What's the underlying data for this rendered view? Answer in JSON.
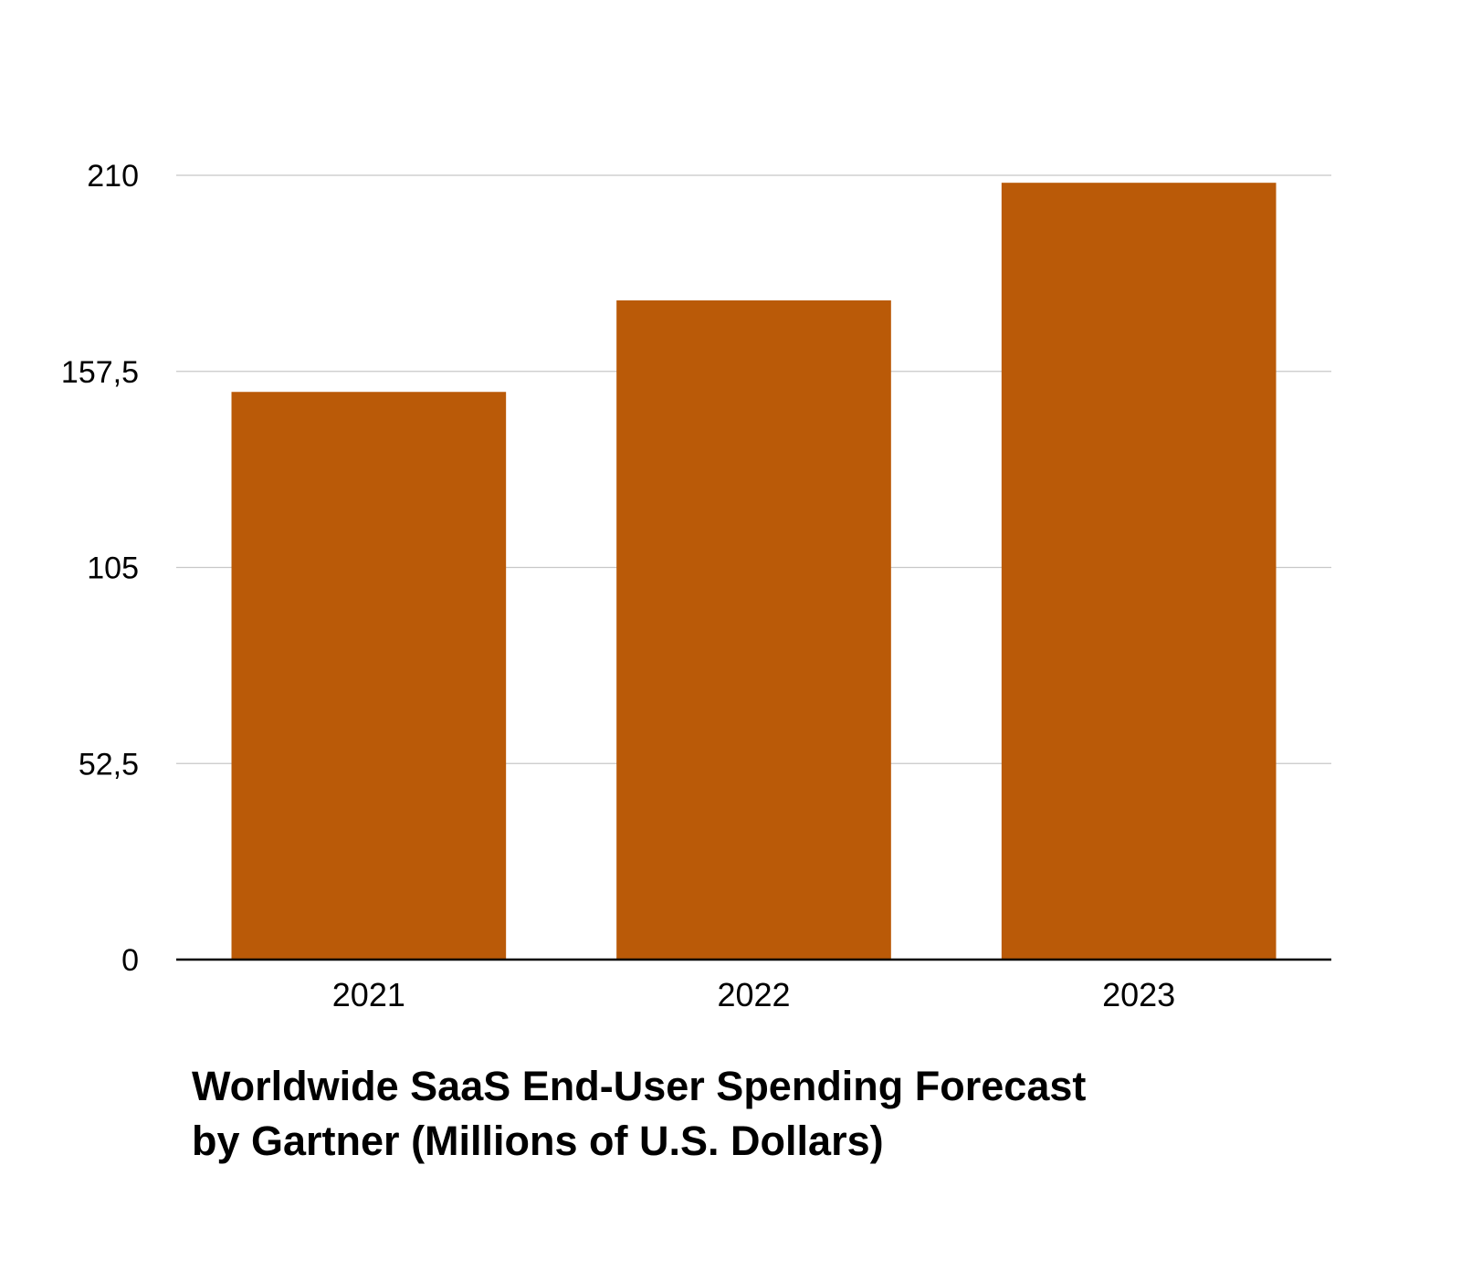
{
  "chart_data": {
    "type": "bar",
    "title_lines": [
      "Worldwide SaaS End-User Spending Forecast",
      "by Gartner (Millions of U.S. Dollars)"
    ],
    "categories": [
      "2021",
      "2022",
      "2023"
    ],
    "values": [
      152,
      176.5,
      208
    ],
    "ylim": [
      0,
      210
    ],
    "yticks": [
      0,
      52.5,
      105,
      157.5,
      210
    ],
    "ytick_labels": [
      "0",
      "52,5",
      "105",
      "157,5",
      "210"
    ],
    "xlabel": "",
    "ylabel": "",
    "grid": true,
    "legend": "none",
    "bar_color": "#BA5A08",
    "gridline_color": "#c8c8c8",
    "axis_color": "#000000"
  }
}
